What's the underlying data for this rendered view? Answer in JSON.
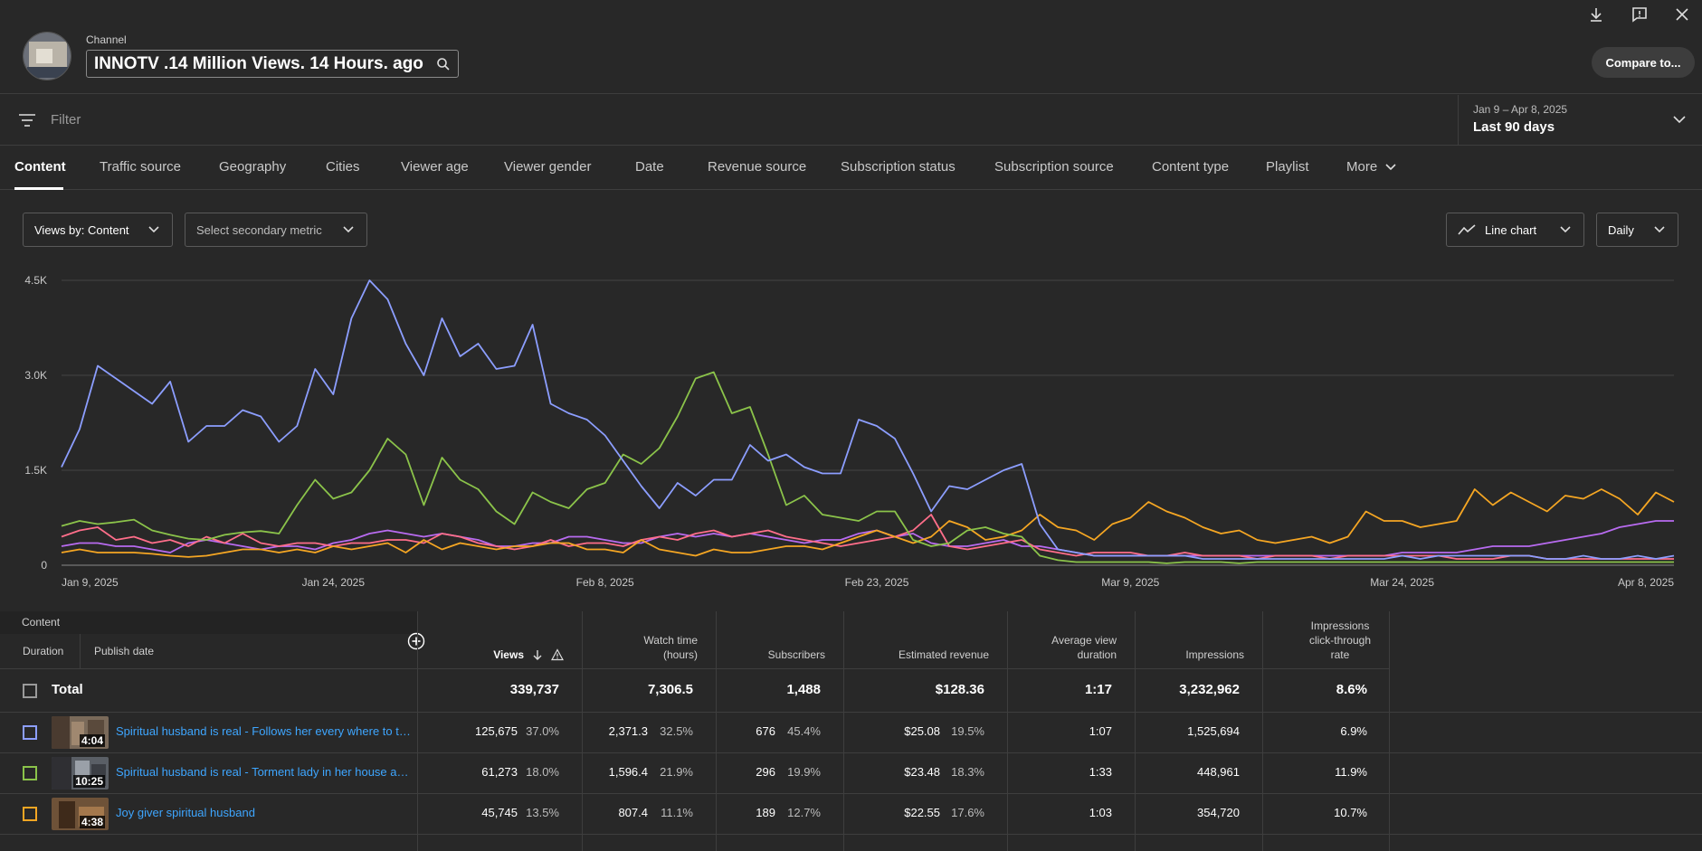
{
  "header": {
    "channel_label": "Channel",
    "channel_name": "INNOTV .14 Million Views. 14 Hours. ago",
    "compare_label": "Compare to..."
  },
  "filter": {
    "placeholder": "Filter",
    "date_range": "Jan 9 – Apr 8, 2025",
    "date_preset": "Last 90 days"
  },
  "tabs": [
    "Content",
    "Traffic source",
    "Geography",
    "Cities",
    "Viewer age",
    "Viewer gender",
    "Date",
    "Revenue source",
    "Subscription status",
    "Subscription source",
    "Content type",
    "Playlist",
    "More"
  ],
  "controls": {
    "primary_metric": "Views by: Content",
    "secondary_metric": "Select secondary metric",
    "chart_type": "Line chart",
    "granularity": "Daily"
  },
  "colors": {
    "blue": "#8c9eff",
    "green": "#8bc34a",
    "orange": "#f5a623",
    "pink": "#ff6e8a",
    "purple": "#b86bf0",
    "link": "#3ea6ff"
  },
  "chart_data": {
    "type": "line",
    "y_ticks": [
      "4.5K",
      "3.0K",
      "1.5K",
      "0"
    ],
    "ylim": [
      0,
      4500
    ],
    "x_ticks": [
      "Jan 9, 2025",
      "Jan 24, 2025",
      "Feb 8, 2025",
      "Feb 23, 2025",
      "Mar 9, 2025",
      "Mar 24, 2025",
      "Apr 8, 2025"
    ],
    "x_days": 90,
    "series": [
      {
        "color": "#8c9eff",
        "values": [
          1550,
          2150,
          3150,
          2950,
          2750,
          2550,
          2900,
          1950,
          2200,
          2200,
          2450,
          2350,
          1950,
          2200,
          3100,
          2700,
          3900,
          4500,
          4200,
          3500,
          3000,
          3900,
          3300,
          3500,
          3100,
          3150,
          3800,
          2550,
          2400,
          2300,
          2050,
          1650,
          1250,
          900,
          1300,
          1100,
          1350,
          1350,
          1900,
          1650,
          1750,
          1550,
          1450,
          1450,
          2300,
          2200,
          2000,
          1450,
          850,
          1250,
          1200,
          1350,
          1500,
          1600,
          650,
          250,
          200,
          150,
          150,
          150,
          150,
          150,
          150,
          100,
          100,
          100,
          100,
          100,
          100,
          100,
          100,
          100,
          100,
          100,
          150,
          100,
          150,
          150,
          150,
          150,
          150,
          150,
          100,
          100,
          150,
          100,
          100,
          150,
          100,
          150
        ]
      },
      {
        "color": "#8bc34a",
        "values": [
          620,
          700,
          650,
          680,
          720,
          550,
          480,
          420,
          400,
          480,
          520,
          540,
          500,
          950,
          1350,
          1050,
          1150,
          1500,
          2000,
          1750,
          950,
          1700,
          1350,
          1200,
          850,
          650,
          1150,
          1000,
          900,
          1200,
          1300,
          1750,
          1600,
          1850,
          2350,
          2950,
          3050,
          2400,
          2500,
          1750,
          950,
          1100,
          800,
          750,
          700,
          850,
          850,
          400,
          300,
          350,
          550,
          600,
          500,
          450,
          150,
          80,
          50,
          50,
          50,
          50,
          50,
          30,
          50,
          50,
          50,
          30,
          50,
          50,
          50,
          50,
          50,
          50,
          50,
          50,
          50,
          50,
          50,
          50,
          50,
          50,
          50,
          50,
          50,
          50,
          50,
          50,
          50,
          50,
          50,
          50
        ]
      },
      {
        "color": "#f5a623",
        "values": [
          200,
          250,
          200,
          200,
          200,
          180,
          150,
          130,
          150,
          200,
          250,
          250,
          200,
          250,
          200,
          300,
          250,
          300,
          350,
          200,
          400,
          250,
          350,
          300,
          250,
          300,
          300,
          350,
          350,
          250,
          250,
          200,
          400,
          250,
          200,
          150,
          250,
          200,
          200,
          250,
          300,
          300,
          250,
          350,
          450,
          550,
          450,
          350,
          450,
          700,
          600,
          400,
          450,
          550,
          800,
          600,
          550,
          400,
          650,
          750,
          1000,
          850,
          750,
          600,
          500,
          550,
          400,
          350,
          400,
          450,
          350,
          450,
          850,
          700,
          700,
          600,
          650,
          700,
          1200,
          950,
          1150,
          1000,
          850,
          1100,
          1050,
          1200,
          1050,
          800,
          1150,
          1000
        ]
      },
      {
        "color": "#ff6e8a",
        "values": [
          450,
          550,
          600,
          400,
          450,
          350,
          400,
          300,
          450,
          350,
          500,
          350,
          300,
          350,
          350,
          300,
          350,
          350,
          400,
          400,
          350,
          500,
          450,
          350,
          300,
          250,
          300,
          400,
          300,
          350,
          350,
          300,
          400,
          450,
          400,
          500,
          550,
          450,
          500,
          550,
          450,
          400,
          350,
          300,
          350,
          400,
          450,
          550,
          800,
          300,
          250,
          300,
          350,
          400,
          250,
          200,
          150,
          200,
          200,
          200,
          150,
          150,
          200,
          150,
          150,
          150,
          100,
          150,
          150,
          150,
          100,
          150,
          150,
          150,
          150,
          150,
          150,
          100,
          100,
          100,
          150,
          150,
          100,
          100,
          100,
          100,
          100,
          100,
          100,
          100
        ]
      },
      {
        "color": "#b86bf0",
        "values": [
          300,
          350,
          350,
          300,
          300,
          250,
          200,
          350,
          400,
          350,
          300,
          250,
          300,
          300,
          250,
          350,
          400,
          500,
          550,
          500,
          450,
          500,
          450,
          400,
          300,
          300,
          350,
          350,
          450,
          450,
          400,
          350,
          350,
          450,
          500,
          450,
          500,
          450,
          500,
          450,
          400,
          350,
          400,
          400,
          500,
          550,
          450,
          500,
          350,
          300,
          300,
          350,
          400,
          300,
          300,
          250,
          200,
          150,
          150,
          150,
          150,
          150,
          150,
          150,
          150,
          150,
          150,
          150,
          150,
          150,
          150,
          150,
          150,
          150,
          200,
          200,
          200,
          200,
          250,
          300,
          300,
          300,
          350,
          400,
          450,
          500,
          600,
          650,
          700,
          700
        ]
      }
    ]
  },
  "table": {
    "content_header": "Content",
    "duration_header": "Duration",
    "publish_header": "Publish date",
    "columns": [
      "Views",
      "Watch time\n(hours)",
      "Subscribers",
      "Estimated revenue",
      "Average view\nduration",
      "Impressions",
      "Impressions\nclick-through\nrate"
    ],
    "total": {
      "label": "Total",
      "views": "339,737",
      "watch_time": "7,306.5",
      "subscribers": "1,488",
      "revenue": "$128.36",
      "avg_duration": "1:17",
      "impressions": "3,232,962",
      "ctr": "8.6%"
    },
    "rows": [
      {
        "checkbox_color": "#8c9eff",
        "duration": "4:04",
        "title": "Spiritual husband is real - Follows her every where to to...",
        "views": "125,675",
        "views_pct": "37.0%",
        "watch_time": "2,371.3",
        "watch_pct": "32.5%",
        "subscribers": "676",
        "subs_pct": "45.4%",
        "revenue": "$25.08",
        "rev_pct": "19.5%",
        "avg_duration": "1:07",
        "impressions": "1,525,694",
        "ctr": "6.9%"
      },
      {
        "checkbox_color": "#8bc34a",
        "duration": "10:25",
        "title": "Spiritual husband is real - Torment lady in her house an...",
        "views": "61,273",
        "views_pct": "18.0%",
        "watch_time": "1,596.4",
        "watch_pct": "21.9%",
        "subscribers": "296",
        "subs_pct": "19.9%",
        "revenue": "$23.48",
        "rev_pct": "18.3%",
        "avg_duration": "1:33",
        "impressions": "448,961",
        "ctr": "11.9%"
      },
      {
        "checkbox_color": "#f5a623",
        "duration": "4:38",
        "title": "Joy giver spiritual husband",
        "views": "45,745",
        "views_pct": "13.5%",
        "watch_time": "807.4",
        "watch_pct": "11.1%",
        "subscribers": "189",
        "subs_pct": "12.7%",
        "revenue": "$22.55",
        "rev_pct": "17.6%",
        "avg_duration": "1:03",
        "impressions": "354,720",
        "ctr": "10.7%"
      }
    ]
  }
}
